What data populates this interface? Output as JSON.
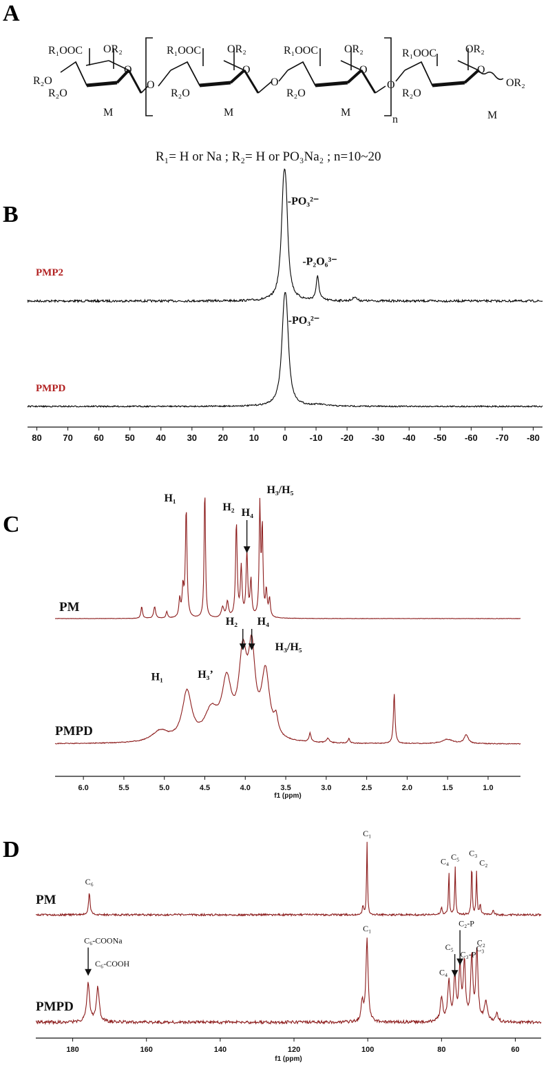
{
  "panel_labels": {
    "a": "A",
    "b": "B",
    "c": "C",
    "d": "D"
  },
  "structure": {
    "r1ooc": "R₁OOC",
    "or2": "OR₂",
    "r2o": "R₂O",
    "ring_o": "O",
    "link_o": "O",
    "monomer": "M",
    "n": "n",
    "formula": "R₁= H or Na ; R₂= H or PO₃Na₂ ; n=10~20"
  },
  "chart_data": [
    {
      "type": "line",
      "panel": "B",
      "description_axis": "31P chemical shift",
      "xlabel": "",
      "xlim": [
        83,
        -83
      ],
      "xticks": [
        80,
        70,
        60,
        50,
        40,
        30,
        20,
        10,
        0,
        -10,
        -20,
        -30,
        -40,
        -50,
        -60,
        -70,
        -80
      ],
      "series": [
        {
          "name": "PMP2",
          "color": "#000000",
          "peaks": [
            {
              "x": 0.5,
              "h": 1.0,
              "w": 0.9
            },
            {
              "x": -0.3,
              "h": 0.82,
              "w": 0.8
            },
            {
              "x": -10.5,
              "h": 0.27,
              "w": 0.55
            },
            {
              "x": -22.5,
              "h": 0.05,
              "w": 0.6
            }
          ],
          "annotations": [
            {
              "x": 0.5,
              "label": "-PO₃²⁻"
            },
            {
              "x": -10.5,
              "label": "-P₂O₆³⁻"
            }
          ]
        },
        {
          "name": "PMPD",
          "color": "#000000",
          "peaks": [
            {
              "x": 0.3,
              "h": 1.0,
              "w": 1.0
            },
            {
              "x": -0.5,
              "h": 0.8,
              "w": 0.9
            },
            {
              "x": -11,
              "h": 0.02,
              "w": 2.5
            }
          ],
          "annotations": [
            {
              "x": 0.3,
              "label": "-PO₃²⁻"
            }
          ]
        }
      ]
    },
    {
      "type": "line",
      "panel": "C",
      "xlabel": "f1 (ppm)",
      "xlim": [
        6.35,
        0.6
      ],
      "xticks": [
        6.0,
        5.5,
        5.0,
        4.5,
        4.0,
        3.5,
        3.0,
        2.5,
        2.0,
        1.5,
        1.0
      ],
      "series": [
        {
          "name": "PM",
          "color": "#8b1a1a",
          "peaks": [
            {
              "x": 5.28,
              "h": 0.09,
              "w": 0.012
            },
            {
              "x": 5.12,
              "h": 0.09,
              "w": 0.014
            },
            {
              "x": 4.97,
              "h": 0.05,
              "w": 0.012
            },
            {
              "x": 4.81,
              "h": 0.14,
              "w": 0.012
            },
            {
              "x": 4.77,
              "h": 0.22,
              "w": 0.012
            },
            {
              "x": 4.73,
              "h": 0.84,
              "w": 0.012
            },
            {
              "x": 4.5,
              "h": 1.0,
              "w": 0.01
            },
            {
              "x": 4.28,
              "h": 0.08,
              "w": 0.02
            },
            {
              "x": 4.22,
              "h": 0.12,
              "w": 0.015
            },
            {
              "x": 4.11,
              "h": 0.73,
              "w": 0.012
            },
            {
              "x": 4.05,
              "h": 0.38,
              "w": 0.012
            },
            {
              "x": 3.98,
              "h": 0.5,
              "w": 0.012
            },
            {
              "x": 3.93,
              "h": 0.28,
              "w": 0.012
            },
            {
              "x": 3.82,
              "h": 0.85,
              "w": 0.01
            },
            {
              "x": 3.79,
              "h": 0.68,
              "w": 0.01
            },
            {
              "x": 3.74,
              "h": 0.2,
              "w": 0.012
            },
            {
              "x": 3.7,
              "h": 0.14,
              "w": 0.012
            }
          ],
          "annotations": [
            {
              "x": 4.73,
              "label": "H₁"
            },
            {
              "x": 4.11,
              "label": "H₂"
            },
            {
              "x": 3.98,
              "label": "H₄"
            },
            {
              "x": 3.82,
              "label": "H₃/H₅"
            }
          ]
        },
        {
          "name": "PMPD",
          "color": "#8b1a1a",
          "peaks": [
            {
              "x": 5.05,
              "h": 0.1,
              "w": 0.12
            },
            {
              "x": 4.72,
              "h": 0.44,
              "w": 0.07
            },
            {
              "x": 4.42,
              "h": 0.25,
              "w": 0.1
            },
            {
              "x": 4.23,
              "h": 0.5,
              "w": 0.07
            },
            {
              "x": 4.03,
              "h": 0.72,
              "w": 0.06
            },
            {
              "x": 3.92,
              "h": 0.72,
              "w": 0.05
            },
            {
              "x": 3.75,
              "h": 0.6,
              "w": 0.06
            },
            {
              "x": 3.62,
              "h": 0.15,
              "w": 0.03
            },
            {
              "x": 3.2,
              "h": 0.08,
              "w": 0.015
            },
            {
              "x": 2.98,
              "h": 0.04,
              "w": 0.02
            },
            {
              "x": 2.72,
              "h": 0.04,
              "w": 0.015
            },
            {
              "x": 2.16,
              "h": 0.45,
              "w": 0.012
            },
            {
              "x": 1.5,
              "h": 0.04,
              "w": 0.08
            },
            {
              "x": 1.27,
              "h": 0.08,
              "w": 0.03
            }
          ],
          "annotations": [
            {
              "x": 4.72,
              "label": "H₁"
            },
            {
              "x": 4.23,
              "label": "H₃’"
            },
            {
              "x": 4.03,
              "label": "H₂"
            },
            {
              "x": 3.92,
              "label": "H₄"
            },
            {
              "x": 3.75,
              "label": "H₃/H₅"
            }
          ]
        }
      ]
    },
    {
      "type": "line",
      "panel": "D",
      "xlabel": "f1 (ppm)",
      "xlim": [
        190,
        53
      ],
      "xticks": [
        180,
        160,
        140,
        120,
        100,
        80,
        60
      ],
      "series": [
        {
          "name": "PM",
          "color": "#8b1a1a",
          "peaks": [
            {
              "x": 175.5,
              "h": 0.3,
              "w": 0.25
            },
            {
              "x": 101.3,
              "h": 0.12,
              "w": 0.2
            },
            {
              "x": 100.2,
              "h": 1.0,
              "w": 0.15
            },
            {
              "x": 80.0,
              "h": 0.12,
              "w": 0.2
            },
            {
              "x": 78.0,
              "h": 0.6,
              "w": 0.15
            },
            {
              "x": 76.3,
              "h": 0.66,
              "w": 0.15
            },
            {
              "x": 71.8,
              "h": 0.73,
              "w": 0.15
            },
            {
              "x": 70.5,
              "h": 0.6,
              "w": 0.15
            },
            {
              "x": 69.5,
              "h": 0.14,
              "w": 0.2
            },
            {
              "x": 66.0,
              "h": 0.08,
              "w": 0.2
            }
          ],
          "annotations": [
            {
              "x": 175.5,
              "label": "C₆"
            },
            {
              "x": 100.2,
              "label": "C₁"
            },
            {
              "x": 78.0,
              "label": "C₄"
            },
            {
              "x": 76.3,
              "label": "C₅"
            },
            {
              "x": 71.8,
              "label": "C₃"
            },
            {
              "x": 70.5,
              "label": "C₂"
            }
          ]
        },
        {
          "name": "PMPD",
          "color": "#8b1a1a",
          "peaks": [
            {
              "x": 175.8,
              "h": 0.4,
              "w": 0.45
            },
            {
              "x": 173.2,
              "h": 0.36,
              "w": 0.45
            },
            {
              "x": 101.5,
              "h": 0.2,
              "w": 0.35
            },
            {
              "x": 100.2,
              "h": 0.85,
              "w": 0.35
            },
            {
              "x": 80.0,
              "h": 0.25,
              "w": 0.4
            },
            {
              "x": 78.0,
              "h": 0.4,
              "w": 0.4
            },
            {
              "x": 76.4,
              "h": 0.46,
              "w": 0.35
            },
            {
              "x": 75.0,
              "h": 0.55,
              "w": 0.35
            },
            {
              "x": 73.8,
              "h": 0.6,
              "w": 0.35
            },
            {
              "x": 71.8,
              "h": 0.66,
              "w": 0.35
            },
            {
              "x": 70.4,
              "h": 0.72,
              "w": 0.35
            },
            {
              "x": 68.0,
              "h": 0.2,
              "w": 0.5
            },
            {
              "x": 65.0,
              "h": 0.08,
              "w": 0.4
            }
          ],
          "annotations": [
            {
              "x": 175.8,
              "label": "C₆-COONa"
            },
            {
              "x": 173.2,
              "label": "C₆-COOH"
            },
            {
              "x": 100.2,
              "label": "C₁"
            },
            {
              "x": 78.0,
              "label": "C₄"
            },
            {
              "x": 76.4,
              "label": "C₅"
            },
            {
              "x": 75.0,
              "label": "C₂-P"
            },
            {
              "x": 73.8,
              "label": "C₃-P"
            },
            {
              "x": 71.8,
              "label": "C₃"
            },
            {
              "x": 70.4,
              "label": "C₂"
            }
          ]
        }
      ]
    }
  ]
}
